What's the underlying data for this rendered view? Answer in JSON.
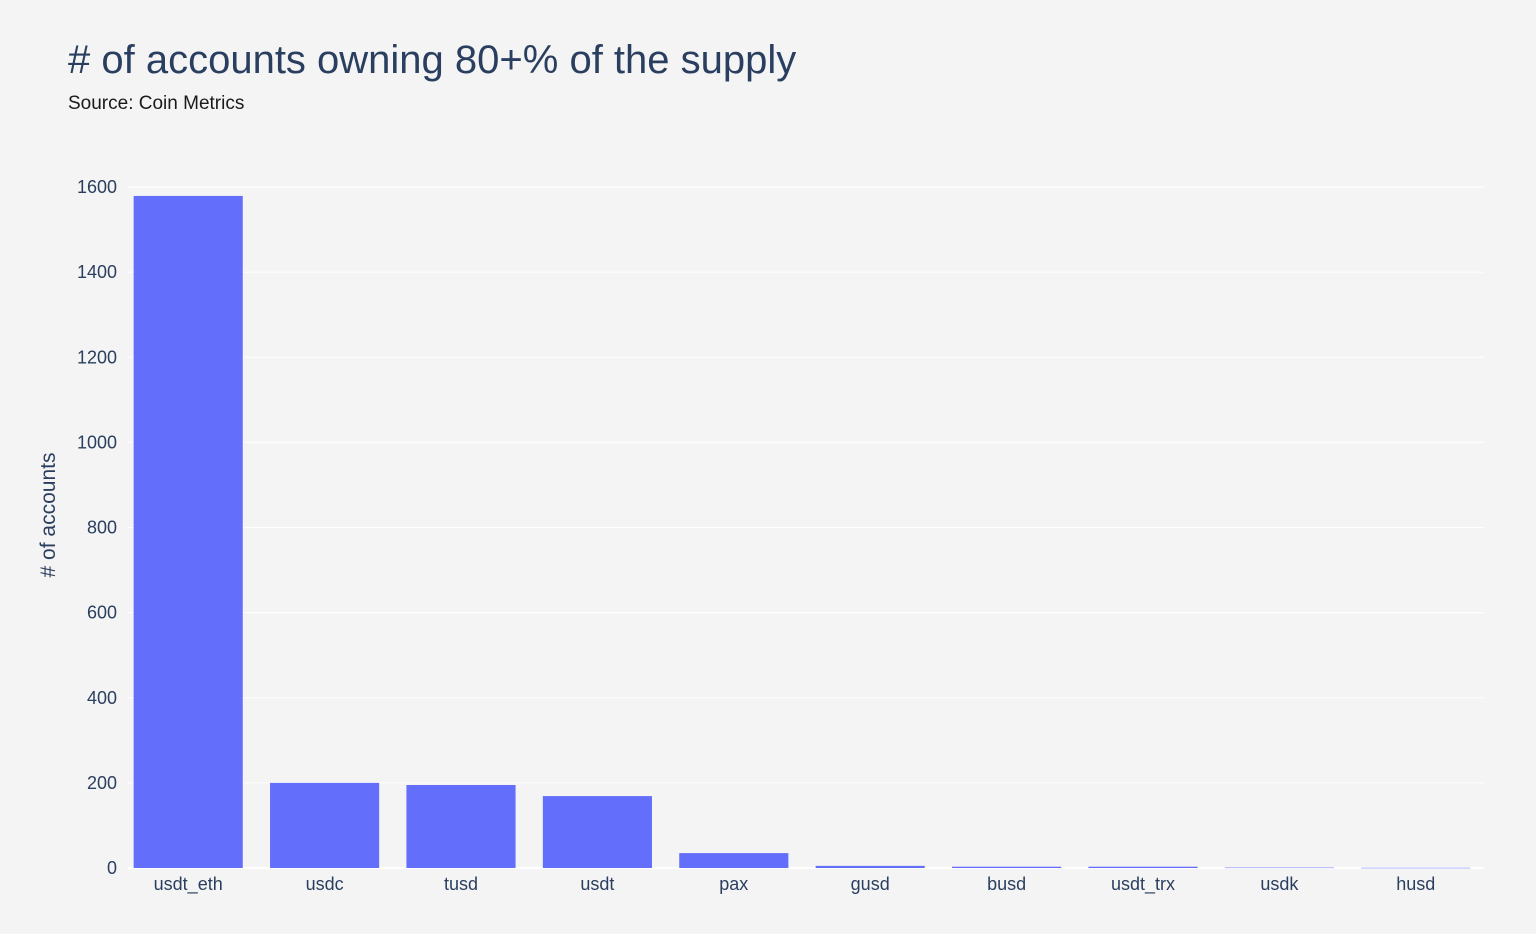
{
  "chart_data": {
    "type": "bar",
    "title": "# of accounts owning 80+% of the supply",
    "subtitle": "Source: Coin Metrics",
    "xlabel": "",
    "ylabel": "# of accounts",
    "categories": [
      "usdt_eth",
      "usdc",
      "tusd",
      "usdt",
      "pax",
      "gusd",
      "busd",
      "usdt_trx",
      "usdk",
      "husd"
    ],
    "values": [
      1579,
      200,
      195,
      169,
      35,
      5,
      3,
      3,
      1,
      0.5
    ],
    "ylim": [
      0,
      1600
    ],
    "yticks": [
      0,
      200,
      400,
      600,
      800,
      1000,
      1200,
      1400,
      1600
    ],
    "grid": true,
    "bar_color": "#636efa"
  }
}
